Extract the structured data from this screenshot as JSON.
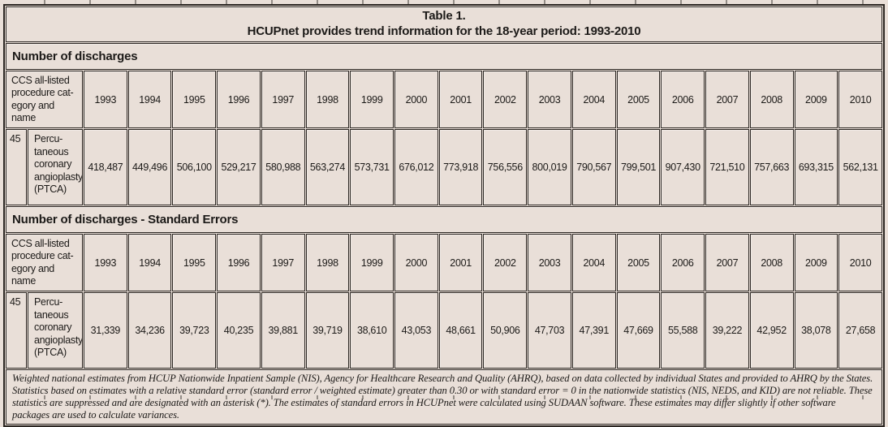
{
  "title": {
    "line1": "Table 1.",
    "line2": "HCUPnet provides trend information for the 18-year period: 1993-2010"
  },
  "row_header_label": "CCS all-listed\nprocedure cat-\negory and name",
  "years": [
    "1993",
    "1994",
    "1995",
    "1996",
    "1997",
    "1998",
    "1999",
    "2000",
    "2001",
    "2002",
    "2003",
    "2004",
    "2005",
    "2006",
    "2007",
    "2008",
    "2009",
    "2010"
  ],
  "sections": [
    {
      "label": "Number of discharges",
      "row": {
        "code": "45",
        "name": "Percu-\ntaneous\ncoronary\nangioplasty\n(PTCA)",
        "values": [
          "418,487",
          "449,496",
          "506,100",
          "529,217",
          "580,988",
          "563,274",
          "573,731",
          "676,012",
          "773,918",
          "756,556",
          "800,019",
          "790,567",
          "799,501",
          "907,430",
          "721,510",
          "757,663",
          "693,315",
          "562,131"
        ]
      }
    },
    {
      "label": "Number of discharges - Standard Errors",
      "row": {
        "code": "45",
        "name": "Percu-\ntaneous\ncoronary\nangioplasty\n(PTCA)",
        "values": [
          "31,339",
          "34,236",
          "39,723",
          "40,235",
          "39,881",
          "39,719",
          "38,610",
          "43,053",
          "48,661",
          "50,906",
          "47,703",
          "47,391",
          "47,669",
          "55,588",
          "39,222",
          "42,952",
          "38,078",
          "27,658"
        ]
      }
    }
  ],
  "footnote": "Weighted national estimates from HCUP Nationwide Inpatient Sample (NIS), Agency for Healthcare Research and Quality (AHRQ), based on data collected by individual States and provided to AHRQ by the States. Statistics based on estimates with a relative standard error (standard error / weighted estimate) greater than 0.30 or with standard error = 0 in the nationwide statistics (NIS, NEDS, and KID) are not reliable. These statistics are suppressed and are designated with an asterisk (*). The estimates of standard errors in HCUPnet were calculated using SUDAAN software. These estimates may differ slightly if other software packages are used to calculate variances.",
  "colors": {
    "background": "#e9dfd8",
    "border": "#2b2622",
    "text": "#1c1a18"
  }
}
